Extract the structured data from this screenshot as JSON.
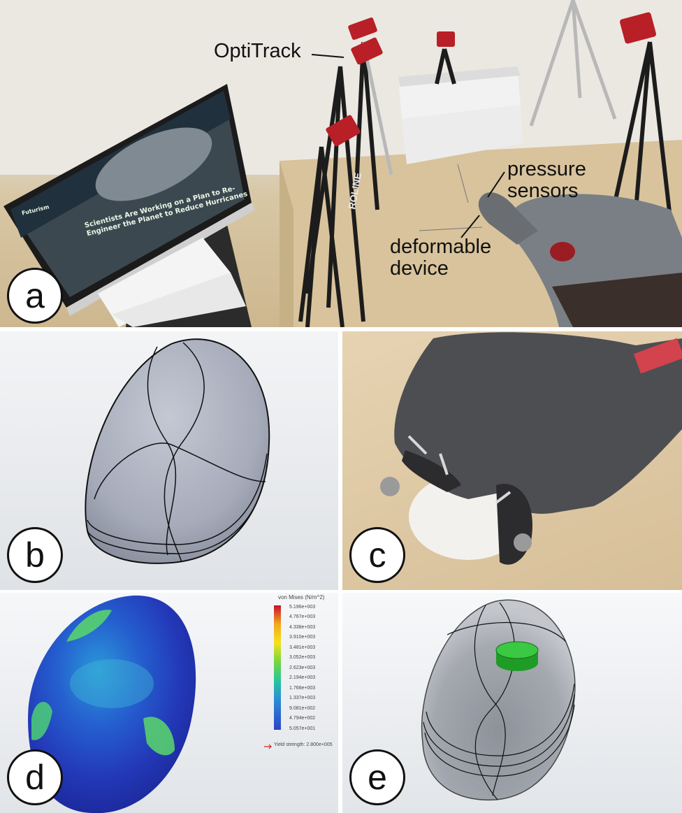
{
  "panels": {
    "a": {
      "badge": "a",
      "labels": {
        "optitrack": "OptiTrack",
        "pressure_line1": "pressure",
        "pressure_line2": "sensors",
        "device_line1": "deformable",
        "device_line2": "device"
      },
      "monitor_headline_line1": "Scientists Are Working on a Plan to Re-",
      "monitor_headline_line2": "Engineer the Planet to Reduce Hurricanes",
      "monitor_site": "Futurism",
      "tripod_text": "ROLINE"
    },
    "b": {
      "badge": "b"
    },
    "c": {
      "badge": "c"
    },
    "d": {
      "badge": "d",
      "legend_title": "von Mises (N/m^2)",
      "legend_ticks": [
        "5.196e+003",
        "4.767e+003",
        "4.338e+003",
        "3.910e+003",
        "3.481e+003",
        "3.052e+003",
        "2.623e+003",
        "2.194e+003",
        "1.766e+003",
        "1.337e+003",
        "9.081e+002",
        "4.794e+002",
        "5.057e+001"
      ],
      "legend_footer": "Yield strength: 2.800e+005",
      "colors": [
        "#c8102e",
        "#e8461b",
        "#f2a71b",
        "#f4e21e",
        "#c6e834",
        "#4fd34b",
        "#27c79a",
        "#25a6d4",
        "#2b6fd6",
        "#2b44c9"
      ]
    },
    "e": {
      "badge": "e",
      "sensor_color": "#29b82f"
    }
  }
}
